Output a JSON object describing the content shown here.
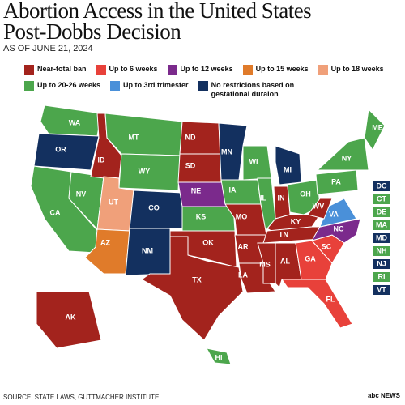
{
  "header": {
    "title": "Abortion Access in the United States Post-Dobbs Decision",
    "date": "AS OF JUNE 21, 2024"
  },
  "legend": [
    {
      "label": "Near-total ban",
      "color": "#a3231d"
    },
    {
      "label": "Up to 6 weeks",
      "color": "#e8413a"
    },
    {
      "label": "Up to 12 weeks",
      "color": "#7b2a8c"
    },
    {
      "label": "Up to 15 weeks",
      "color": "#e07b2a"
    },
    {
      "label": "Up to 18 weeks",
      "color": "#f0a07a"
    },
    {
      "label": "Up to 20-26 weeks",
      "color": "#4ca64c"
    },
    {
      "label": "Up to 3rd trimester",
      "color": "#4a90d9"
    },
    {
      "label": "No restricions based on gestational duraion",
      "color": "#13305f"
    }
  ],
  "states": [
    {
      "label": "WA",
      "category": 5
    },
    {
      "label": "OR",
      "category": 7
    },
    {
      "label": "CA",
      "category": 5
    },
    {
      "label": "NV",
      "category": 5
    },
    {
      "label": "ID",
      "category": 0
    },
    {
      "label": "MT",
      "category": 5
    },
    {
      "label": "WY",
      "category": 5
    },
    {
      "label": "UT",
      "category": 4
    },
    {
      "label": "AZ",
      "category": 3
    },
    {
      "label": "CO",
      "category": 7
    },
    {
      "label": "NM",
      "category": 7
    },
    {
      "label": "ND",
      "category": 0
    },
    {
      "label": "SD",
      "category": 0
    },
    {
      "label": "NE",
      "category": 2
    },
    {
      "label": "KS",
      "category": 5
    },
    {
      "label": "OK",
      "category": 0
    },
    {
      "label": "TX",
      "category": 0
    },
    {
      "label": "MN",
      "category": 7
    },
    {
      "label": "IA",
      "category": 5
    },
    {
      "label": "MO",
      "category": 0
    },
    {
      "label": "AR",
      "category": 0
    },
    {
      "label": "LA",
      "category": 0
    },
    {
      "label": "WI",
      "category": 5
    },
    {
      "label": "IL",
      "category": 5
    },
    {
      "label": "MI",
      "category": 7
    },
    {
      "label": "IN",
      "category": 0
    },
    {
      "label": "OH",
      "category": 5
    },
    {
      "label": "KY",
      "category": 0
    },
    {
      "label": "TN",
      "category": 0
    },
    {
      "label": "MS",
      "category": 0
    },
    {
      "label": "AL",
      "category": 0
    },
    {
      "label": "GA",
      "category": 1
    },
    {
      "label": "FL",
      "category": 1
    },
    {
      "label": "SC",
      "category": 1
    },
    {
      "label": "NC",
      "category": 2
    },
    {
      "label": "VA",
      "category": 6
    },
    {
      "label": "WV",
      "category": 0
    },
    {
      "label": "PA",
      "category": 5
    },
    {
      "label": "NY",
      "category": 5
    },
    {
      "label": "ME",
      "category": 5
    },
    {
      "label": "AK",
      "category": 0
    },
    {
      "label": "HI",
      "category": 5
    }
  ],
  "boxed_states": [
    {
      "label": "DC",
      "category": 7
    },
    {
      "label": "CT",
      "category": 5
    },
    {
      "label": "DE",
      "category": 5
    },
    {
      "label": "MA",
      "category": 5
    },
    {
      "label": "MD",
      "category": 7
    },
    {
      "label": "NH",
      "category": 5
    },
    {
      "label": "NJ",
      "category": 7
    },
    {
      "label": "RI",
      "category": 5
    },
    {
      "label": "VT",
      "category": 7
    }
  ],
  "footer": {
    "source": "SOURCE: STATE LAWS, GUTTMACHER INSTITUTE",
    "logo": "abc NEWS"
  }
}
